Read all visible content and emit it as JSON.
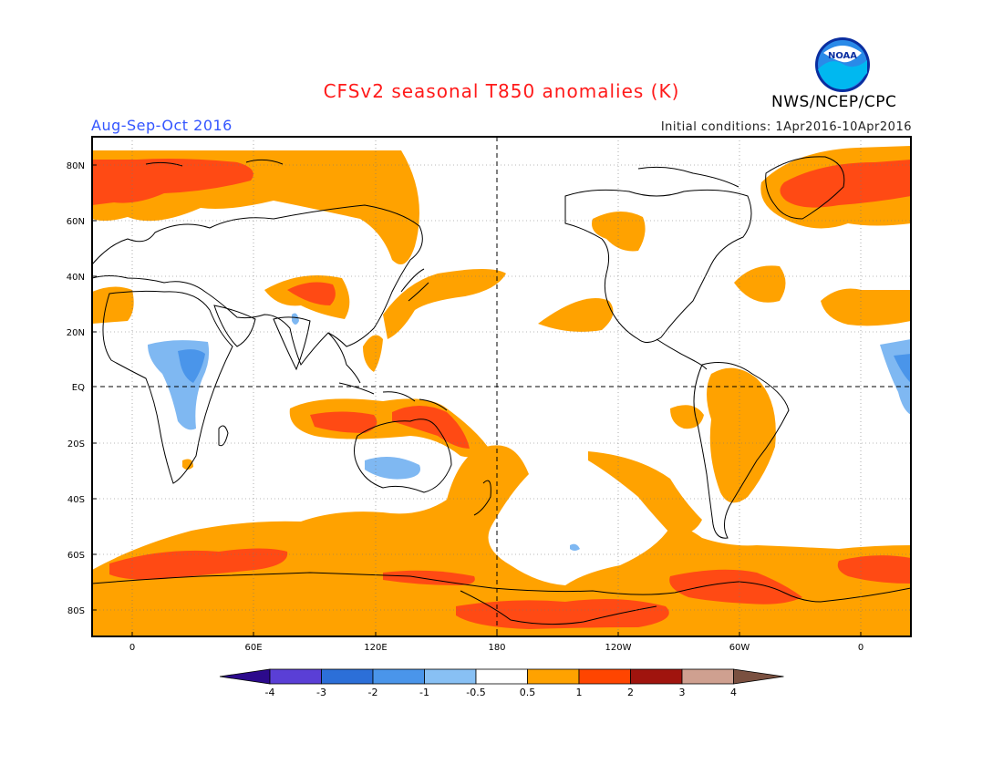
{
  "title": "CFSv2 seasonal T850 anomalies (K)",
  "period": "Aug-Sep-Oct 2016",
  "initial_conditions": "Initial conditions: 1Apr2016-10Apr2016",
  "agency": "NWS/NCEP/CPC",
  "logo_text": "NOAA",
  "map": {
    "lat_labels": [
      "80N",
      "60N",
      "40N",
      "20N",
      "EQ",
      "20S",
      "40S",
      "60S",
      "80S"
    ],
    "lon_labels": [
      "0",
      "60E",
      "120E",
      "180",
      "120W",
      "60W",
      "0"
    ]
  },
  "colorbar": {
    "labels": [
      "-4",
      "-3",
      "-2",
      "-1",
      "-0.5",
      "0.5",
      "1",
      "2",
      "3",
      "4"
    ],
    "colors": [
      "#2c0a8c",
      "#5a3fd6",
      "#2c6fd8",
      "#4a95ea",
      "#88c0f4",
      "#ffffff",
      "#ffa200",
      "#ff4500",
      "#a0140e",
      "#cfa090",
      "#7a5040"
    ]
  },
  "anomaly_colors": {
    "warm_1": "#ffa200",
    "warm_2": "#ff4a14",
    "cool_1": "#7fb8f2",
    "cool_2": "#4a95ea"
  }
}
